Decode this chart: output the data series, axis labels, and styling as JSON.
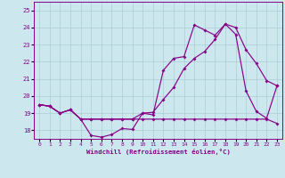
{
  "xlabel": "Windchill (Refroidissement éolien,°C)",
  "bg_color": "#cce8ee",
  "grid_color": "#aacdd6",
  "line_color": "#880088",
  "xlim": [
    -0.5,
    23.5
  ],
  "ylim": [
    17.5,
    25.5
  ],
  "xticks": [
    0,
    1,
    2,
    3,
    4,
    5,
    6,
    7,
    8,
    9,
    10,
    11,
    12,
    13,
    14,
    15,
    16,
    17,
    18,
    19,
    20,
    21,
    22,
    23
  ],
  "yticks": [
    18,
    19,
    20,
    21,
    22,
    23,
    24,
    25
  ],
  "line1_x": [
    0,
    1,
    2,
    3,
    4,
    5,
    6,
    7,
    8,
    9,
    10,
    11,
    12,
    13,
    14,
    15,
    16,
    17,
    18,
    19,
    20,
    21,
    22,
    23
  ],
  "line1_y": [
    19.5,
    19.4,
    19.0,
    19.2,
    18.65,
    17.7,
    17.6,
    17.75,
    18.1,
    18.05,
    19.0,
    18.9,
    21.5,
    22.2,
    22.3,
    24.15,
    23.85,
    23.55,
    24.2,
    23.6,
    20.3,
    19.1,
    18.7,
    20.6
  ],
  "line2_x": [
    0,
    1,
    2,
    3,
    4,
    5,
    6,
    7,
    8,
    9,
    10,
    11,
    12,
    13,
    14,
    15,
    16,
    17,
    18,
    19,
    20,
    21,
    22,
    23
  ],
  "line2_y": [
    19.5,
    19.4,
    19.0,
    19.2,
    18.65,
    18.65,
    18.65,
    18.65,
    18.65,
    18.65,
    19.0,
    19.05,
    19.8,
    20.5,
    21.6,
    22.2,
    22.6,
    23.3,
    24.2,
    24.0,
    22.7,
    21.9,
    20.9,
    20.6
  ],
  "line3_x": [
    0,
    1,
    2,
    3,
    4,
    5,
    6,
    7,
    8,
    9,
    10,
    11,
    12,
    13,
    14,
    15,
    16,
    17,
    18,
    19,
    20,
    21,
    22,
    23
  ],
  "line3_y": [
    19.5,
    19.4,
    19.0,
    19.2,
    18.65,
    18.65,
    18.65,
    18.65,
    18.65,
    18.65,
    18.65,
    18.65,
    18.65,
    18.65,
    18.65,
    18.65,
    18.65,
    18.65,
    18.65,
    18.65,
    18.65,
    18.65,
    18.65,
    18.4
  ]
}
